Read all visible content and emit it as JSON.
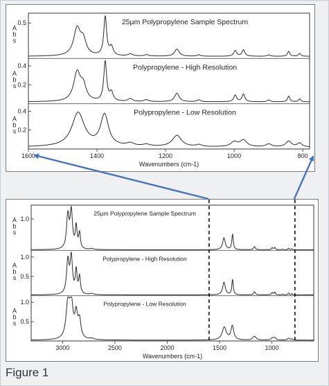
{
  "figure_caption": "Figure 1",
  "colors": {
    "arrow": "#4472c4",
    "trace": "#2a2a2a",
    "panel_border": "#7a7a7a"
  },
  "chart_data": [
    {
      "type": "line",
      "panel": "top",
      "x_axis": {
        "label": "Wavenumbers (cm-1)",
        "range": [
          1600,
          780
        ],
        "reversed": true,
        "ticks": [
          1600,
          1400,
          1200,
          1000,
          800
        ]
      },
      "subplots": [
        {
          "title": "25µm Polypropylene Sample Spectrum",
          "ylabel": "Abs",
          "ylim": [
            0,
            0.6
          ],
          "yticks": [
            0.5
          ],
          "ytick_labels": [
            "0.5"
          ],
          "baseline": 0.03,
          "peaks": [
            [
              1458,
              0.38,
              12
            ],
            [
              1440,
              0.2,
              10
            ],
            [
              1376,
              0.55,
              5
            ],
            [
              1358,
              0.12,
              6
            ],
            [
              1303,
              0.03,
              8
            ],
            [
              1256,
              0.02,
              8
            ],
            [
              1167,
              0.1,
              8
            ],
            [
              1103,
              0.02,
              6
            ],
            [
              997,
              0.08,
              5
            ],
            [
              973,
              0.09,
              5
            ],
            [
              899,
              0.02,
              5
            ],
            [
              841,
              0.07,
              4
            ],
            [
              809,
              0.04,
              4
            ]
          ]
        },
        {
          "title": "Polypropylene - High Resolution",
          "ylabel": "Abs",
          "ylim": [
            0,
            0.45
          ],
          "yticks": [
            0.2,
            0.4
          ],
          "ytick_labels": [
            "0.2",
            "0.4"
          ],
          "baseline": 0.02,
          "peaks": [
            [
              1458,
              0.3,
              12
            ],
            [
              1440,
              0.15,
              10
            ],
            [
              1376,
              0.42,
              5
            ],
            [
              1358,
              0.09,
              6
            ],
            [
              1303,
              0.03,
              8
            ],
            [
              1256,
              0.02,
              8
            ],
            [
              1167,
              0.09,
              8
            ],
            [
              1103,
              0.02,
              6
            ],
            [
              997,
              0.07,
              5
            ],
            [
              973,
              0.08,
              5
            ],
            [
              899,
              0.02,
              5
            ],
            [
              841,
              0.06,
              4
            ],
            [
              809,
              0.03,
              4
            ]
          ]
        },
        {
          "title": "Polypropylene - Low Resolution",
          "ylabel": "Abs",
          "ylim": [
            0,
            0.45
          ],
          "yticks": [
            0.2,
            0.4
          ],
          "ytick_labels": [
            "0.2",
            "0.4"
          ],
          "baseline": 0.02,
          "peaks": [
            [
              1455,
              0.36,
              22
            ],
            [
              1378,
              0.33,
              14
            ],
            [
              1303,
              0.03,
              14
            ],
            [
              1256,
              0.02,
              14
            ],
            [
              1167,
              0.12,
              16
            ],
            [
              1103,
              0.02,
              10
            ],
            [
              1000,
              0.05,
              12
            ],
            [
              973,
              0.07,
              12
            ],
            [
              899,
              0.03,
              10
            ],
            [
              841,
              0.06,
              10
            ],
            [
              809,
              0.04,
              8
            ]
          ]
        }
      ]
    },
    {
      "type": "line",
      "panel": "bottom",
      "x_axis": {
        "label": "Wavenumbers (cm-1)",
        "range": [
          3300,
          600
        ],
        "reversed": true,
        "ticks": [
          3000,
          2500,
          2000,
          1500,
          1000
        ]
      },
      "subplots": [
        {
          "title": "25µm Polypropylene Sample Spectrum",
          "ylabel": "Abs",
          "ylim": [
            0,
            1.35
          ],
          "yticks": [
            1.0
          ],
          "ytick_labels": [
            "1.0"
          ],
          "baseline": 0.02,
          "peaks": [
            [
              2950,
              1.05,
              14
            ],
            [
              2917,
              1.2,
              14
            ],
            [
              2870,
              0.7,
              10
            ],
            [
              2838,
              0.5,
              10
            ],
            [
              2720,
              0.03,
              20
            ],
            [
              1458,
              0.38,
              15
            ],
            [
              1376,
              0.5,
              8
            ],
            [
              1167,
              0.1,
              10
            ],
            [
              997,
              0.06,
              8
            ],
            [
              973,
              0.07,
              8
            ],
            [
              899,
              0.02,
              6
            ],
            [
              841,
              0.05,
              6
            ],
            [
              809,
              0.03,
              6
            ]
          ]
        },
        {
          "title": "Polypropylene - High Resolution",
          "ylabel": "Abs",
          "ylim": [
            0,
            1.1
          ],
          "yticks": [
            0.5,
            1.0
          ],
          "ytick_labels": [
            "0.5",
            "1.0"
          ],
          "baseline": 0.02,
          "peaks": [
            [
              2950,
              0.85,
              14
            ],
            [
              2917,
              0.95,
              14
            ],
            [
              2870,
              0.6,
              10
            ],
            [
              2838,
              0.45,
              10
            ],
            [
              2720,
              0.03,
              20
            ],
            [
              1458,
              0.33,
              15
            ],
            [
              1376,
              0.4,
              8
            ],
            [
              1167,
              0.08,
              10
            ],
            [
              997,
              0.06,
              8
            ],
            [
              973,
              0.07,
              8
            ],
            [
              899,
              0.02,
              6
            ],
            [
              841,
              0.05,
              6
            ],
            [
              809,
              0.03,
              6
            ]
          ]
        },
        {
          "title": "Polypropylene - Low Resolution",
          "ylabel": "Abs",
          "ylim": [
            0,
            1.1
          ],
          "yticks": [
            0.5,
            1.0
          ],
          "ytick_labels": [
            "0.5",
            "1.0"
          ],
          "baseline": 0.02,
          "peaks": [
            [
              2950,
              0.85,
              20
            ],
            [
              2917,
              0.9,
              20
            ],
            [
              2870,
              0.6,
              16
            ],
            [
              2838,
              0.45,
              16
            ],
            [
              2720,
              0.03,
              24
            ],
            [
              1455,
              0.33,
              24
            ],
            [
              1378,
              0.36,
              16
            ],
            [
              1167,
              0.1,
              18
            ],
            [
              997,
              0.05,
              14
            ],
            [
              973,
              0.06,
              14
            ],
            [
              841,
              0.05,
              12
            ],
            [
              809,
              0.03,
              10
            ]
          ]
        }
      ],
      "dashed_markers_x": [
        1600,
        780
      ]
    }
  ]
}
